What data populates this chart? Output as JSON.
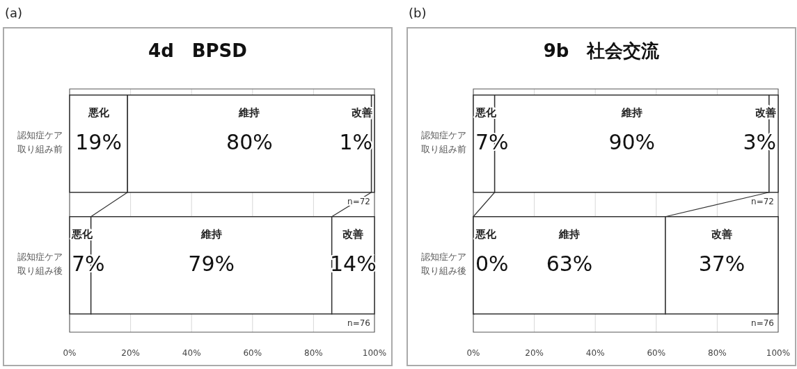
{
  "chart_data": [
    {
      "type": "bar",
      "orientation": "horizontal",
      "stacked": true,
      "title": "4d　BPSD",
      "categories": [
        "認知症ケア取り組み前",
        "認知症ケア取り組み後"
      ],
      "series": [
        {
          "name": "悪化",
          "color": "#ffffff",
          "values": [
            19,
            7
          ],
          "value_labels": [
            "19%",
            "7%"
          ]
        },
        {
          "name": "維持",
          "color": "#ffffff",
          "values": [
            80,
            79
          ],
          "value_labels": [
            "80%",
            "79%"
          ]
        },
        {
          "name": "改善",
          "color": "#ffffff",
          "values": [
            1,
            14
          ],
          "value_labels": [
            "1%",
            "14%"
          ]
        }
      ],
      "xlim": [
        0,
        100
      ],
      "xticks": [
        {
          "value": 0,
          "label": "0%"
        },
        {
          "value": 20,
          "label": "20%"
        },
        {
          "value": 40,
          "label": "40%"
        },
        {
          "value": 60,
          "label": "60%"
        },
        {
          "value": 80,
          "label": "80%"
        },
        {
          "value": 100,
          "label": "100%"
        }
      ],
      "grid": "x",
      "annotations": [
        "(a)",
        {
          "text": "n=72",
          "y": "認知症ケア取り組み前"
        },
        {
          "text": "n=76",
          "y": "認知症ケア取り組み後"
        }
      ]
    },
    {
      "type": "bar",
      "orientation": "horizontal",
      "stacked": true,
      "title": "9b　社会交流",
      "categories": [
        "認知症ケア取り組み前",
        "認知症ケア取り組み後"
      ],
      "series": [
        {
          "name": "悪化",
          "color": "#ffffff",
          "values": [
            7,
            0
          ],
          "value_labels": [
            "7%",
            "0%"
          ]
        },
        {
          "name": "維持",
          "color": "#ffffff",
          "values": [
            90,
            63
          ],
          "value_labels": [
            "90%",
            "63%"
          ]
        },
        {
          "name": "改善",
          "color": "#ffffff",
          "values": [
            3,
            37
          ],
          "value_labels": [
            "3%",
            "37%"
          ]
        }
      ],
      "xlim": [
        0,
        100
      ],
      "xticks": [
        {
          "value": 0,
          "label": "0%"
        },
        {
          "value": 20,
          "label": "20%"
        },
        {
          "value": 40,
          "label": "40%"
        },
        {
          "value": 60,
          "label": "60%"
        },
        {
          "value": 80,
          "label": "80%"
        },
        {
          "value": 100,
          "label": "100%"
        }
      ],
      "grid": "x",
      "annotations": [
        "(b)",
        {
          "text": "n=72",
          "y": "認知症ケア取り組み前"
        },
        {
          "text": "n=76",
          "y": "認知症ケア取り組み後"
        }
      ]
    }
  ]
}
